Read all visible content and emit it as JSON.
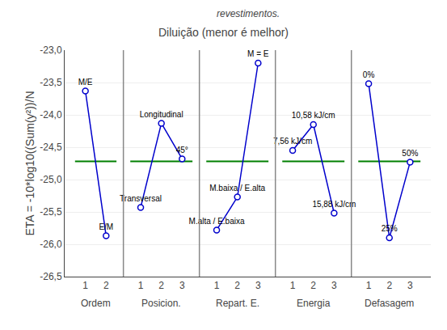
{
  "chart_data": {
    "type": "line",
    "title": "Diluição (menor é melhor)",
    "subtitle": "revestimentos.",
    "ylabel": "ETA = -10*log10((Sum(y²))/N",
    "ylim": [
      -26.5,
      -23.0
    ],
    "yticks": [
      {
        "value": -26.5,
        "label": "-26,5"
      },
      {
        "value": -26.0,
        "label": "-26,0"
      },
      {
        "value": -25.5,
        "label": "-25,5"
      },
      {
        "value": -25.0,
        "label": "-25,0"
      },
      {
        "value": -24.5,
        "label": "-24,5"
      },
      {
        "value": -24.0,
        "label": "-24,0"
      },
      {
        "value": -23.5,
        "label": "-23,5"
      },
      {
        "value": -23.0,
        "label": "-23,0"
      }
    ],
    "grid": true,
    "color": "#0000cc",
    "marker": "circle",
    "mean": {
      "value": -24.72,
      "color": "#008000"
    },
    "series": [
      {
        "name": "Ordem",
        "categories": [
          "1",
          "2"
        ],
        "values": [
          -23.63,
          -25.87
        ],
        "point_labels": [
          "M/E",
          "E/M"
        ]
      },
      {
        "name": "Posicion.",
        "categories": [
          "1",
          "2",
          "3"
        ],
        "values": [
          -25.43,
          -24.13,
          -24.68
        ],
        "point_labels": [
          "Transversal",
          "Longitudinal",
          "45°"
        ]
      },
      {
        "name": "Repart. E.",
        "categories": [
          "1",
          "2",
          "3"
        ],
        "values": [
          -25.78,
          -25.27,
          -23.2
        ],
        "point_labels": [
          "M.alta / E.baixa",
          "M.baixa / E.alta",
          "M = E"
        ]
      },
      {
        "name": "Energia",
        "categories": [
          "1",
          "2",
          "3"
        ],
        "values": [
          -24.55,
          -24.15,
          -25.52
        ],
        "point_labels": [
          "7,56 kJ/cm",
          "10,58 kJ/cm",
          "15,88 kJ/cm"
        ]
      },
      {
        "name": "Defasagem",
        "categories": [
          "1",
          "2",
          "3"
        ],
        "values": [
          -23.52,
          -25.9,
          -24.73
        ],
        "point_labels": [
          "0%",
          "25%",
          "50%"
        ]
      }
    ]
  }
}
